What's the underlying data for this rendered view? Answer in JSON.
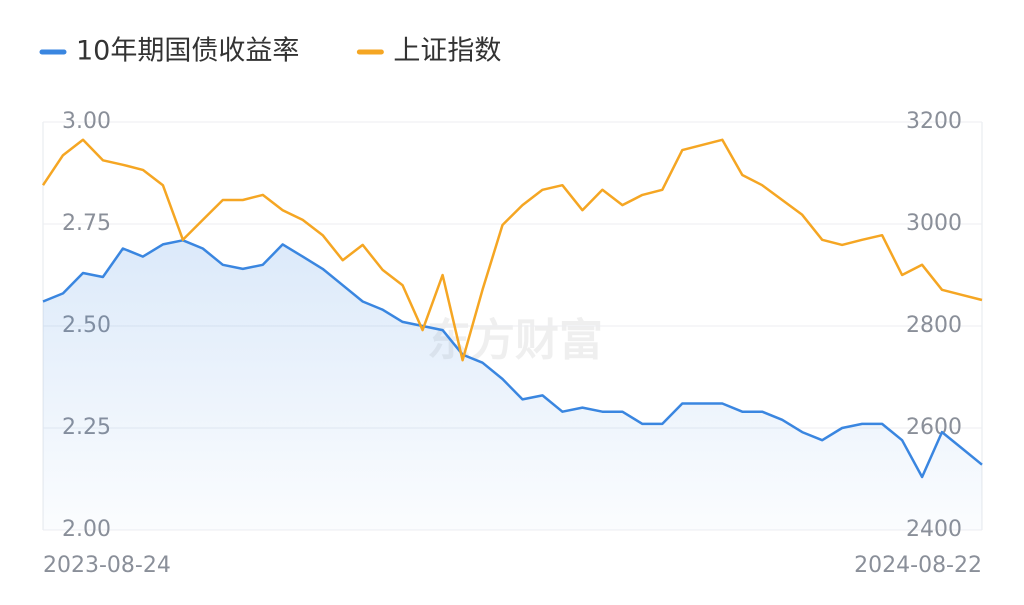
{
  "chart_data": {
    "type": "line",
    "watermark": "东方财富",
    "categories": [
      "2023-08-24",
      null,
      null,
      null,
      null,
      null,
      null,
      null,
      null,
      null,
      null,
      null,
      null,
      null,
      null,
      null,
      null,
      null,
      null,
      null,
      null,
      null,
      null,
      null,
      null,
      null,
      null,
      null,
      null,
      null,
      null,
      null,
      null,
      null,
      null,
      null,
      null,
      null,
      null,
      null,
      null,
      null,
      null,
      null,
      null,
      null,
      null,
      "2024-08-22"
    ],
    "series": [
      {
        "name": "10年期国债收益率",
        "color": "#3a86e0",
        "values": [
          2.56,
          2.58,
          2.63,
          2.62,
          2.69,
          2.67,
          2.7,
          2.71,
          2.69,
          2.65,
          2.64,
          2.65,
          2.7,
          2.67,
          2.64,
          2.6,
          2.56,
          2.54,
          2.51,
          2.5,
          2.49,
          2.43,
          2.41,
          2.37,
          2.32,
          2.33,
          2.29,
          2.3,
          2.29,
          2.29,
          2.26,
          2.26,
          2.31,
          2.31,
          2.31,
          2.29,
          2.29,
          2.27,
          2.24,
          2.22,
          2.25,
          2.26,
          2.26,
          2.22,
          2.13,
          2.24,
          2.2,
          2.16
        ]
      },
      {
        "name": "上证指数",
        "color": "#f5a623",
        "axis": "y2",
        "values": [
          3076,
          3135,
          3165,
          3125,
          3116,
          3106,
          3076,
          2969,
          3008,
          3047,
          3047,
          3057,
          3027,
          3008,
          2978,
          2929,
          2959,
          2910,
          2880,
          2792,
          2900,
          2733,
          2871,
          2998,
          3037,
          3067,
          3076,
          3027,
          3067,
          3037,
          3057,
          3067,
          3145,
          3155,
          3165,
          3096,
          3076,
          3047,
          3018,
          2969,
          2959,
          2969,
          2978,
          2900,
          2920,
          2871,
          2861,
          2851
        ]
      }
    ],
    "ylim": [
      2,
      3
    ],
    "yticks": [
      {
        "value": 2,
        "label": "2.00"
      },
      2.25,
      {
        "value": 2.5,
        "label": "2.50"
      },
      2.75,
      {
        "value": 3,
        "label": "3.00"
      }
    ],
    "y2lim": [
      2400,
      3200
    ],
    "y2ticks": [
      2400,
      2600,
      2800,
      3000,
      3200
    ],
    "grid": true,
    "legend": "top"
  }
}
